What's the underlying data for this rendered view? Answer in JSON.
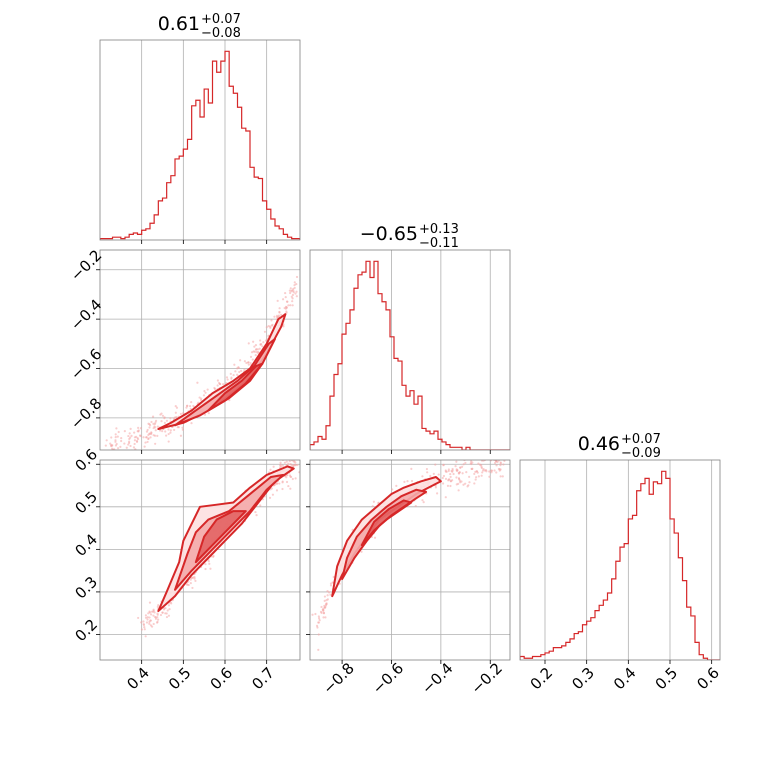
{
  "figure": {
    "colors": {
      "series": "#d62728",
      "scatter": "#f4a6a6",
      "fill_light": "#fde0e0",
      "fill_mid": "#f4aaaa",
      "grid": "#b0b0b0",
      "frame": "#808080"
    }
  },
  "chart_data": [
    {
      "type": "histogram",
      "panel": "p00",
      "title_value": "0.61",
      "title_plus": "+0.07",
      "title_minus": "−0.08",
      "xlim": [
        0.3,
        0.78
      ],
      "bin_edges_start": 0.3,
      "bin_width": 0.01,
      "counts": [
        1,
        1,
        1,
        2,
        2,
        1,
        2,
        4,
        5,
        4,
        7,
        8,
        12,
        18,
        28,
        30,
        41,
        46,
        58,
        60,
        65,
        72,
        96,
        100,
        88,
        108,
        98,
        128,
        120,
        128,
        135,
        110,
        105,
        95,
        80,
        78,
        52,
        45,
        44,
        28,
        22,
        15,
        10,
        8,
        4,
        2,
        1,
        1
      ],
      "xticks": [
        0.4,
        0.5,
        0.6,
        0.7
      ],
      "grid": true
    },
    {
      "type": "histogram",
      "panel": "p11",
      "title_value": "−0.65",
      "title_plus": "+0.13",
      "title_minus": "−0.11",
      "xlim": [
        -0.93,
        -0.12
      ],
      "bin_edges_start": -0.93,
      "bin_width": 0.0162,
      "counts": [
        2,
        3,
        5,
        4,
        9,
        20,
        28,
        32,
        43,
        47,
        52,
        60,
        65,
        66,
        70,
        64,
        70,
        58,
        55,
        52,
        42,
        34,
        33,
        24,
        20,
        22,
        17,
        20,
        8,
        7,
        6,
        7,
        4,
        3,
        2,
        1,
        1,
        1,
        0,
        1,
        0,
        0,
        0,
        0,
        0,
        0,
        0,
        0,
        0,
        0
      ],
      "xticks": [
        -0.8,
        -0.6,
        -0.4,
        -0.2
      ],
      "grid": true
    },
    {
      "type": "histogram",
      "panel": "p22",
      "title_value": "0.46",
      "title_plus": "+0.07",
      "title_minus": "−0.09",
      "xlim": [
        0.14,
        0.62
      ],
      "bin_edges_start": 0.14,
      "bin_width": 0.01,
      "counts": [
        2,
        1,
        1,
        2,
        2,
        3,
        4,
        5,
        7,
        7,
        8,
        10,
        12,
        15,
        16,
        20,
        22,
        24,
        28,
        31,
        34,
        38,
        46,
        56,
        64,
        66,
        80,
        82,
        96,
        100,
        103,
        94,
        101,
        100,
        107,
        103,
        80,
        72,
        58,
        45,
        30,
        25,
        10,
        3,
        1,
        0,
        0,
        0
      ],
      "xticks": [
        0.2,
        0.3,
        0.4,
        0.5,
        0.6
      ],
      "grid": true
    },
    {
      "type": "scatter",
      "panel": "p10",
      "subtype": "2d-density-contour",
      "xlim": [
        0.3,
        0.78
      ],
      "ylim": [
        -0.93,
        -0.12
      ],
      "yticks": [
        -0.8,
        -0.6,
        -0.4,
        -0.2
      ],
      "grid": true,
      "ridge": [
        [
          0.32,
          -0.92
        ],
        [
          0.4,
          -0.87
        ],
        [
          0.47,
          -0.82
        ],
        [
          0.53,
          -0.77
        ],
        [
          0.58,
          -0.71
        ],
        [
          0.62,
          -0.65
        ],
        [
          0.66,
          -0.58
        ],
        [
          0.69,
          -0.51
        ],
        [
          0.72,
          -0.43
        ],
        [
          0.74,
          -0.37
        ],
        [
          0.76,
          -0.31
        ],
        [
          0.775,
          -0.25
        ]
      ],
      "contours": [
        {
          "level": "outer",
          "points": [
            [
              0.44,
              -0.845
            ],
            [
              0.5,
              -0.82
            ],
            [
              0.56,
              -0.77
            ],
            [
              0.61,
              -0.71
            ],
            [
              0.66,
              -0.64
            ],
            [
              0.7,
              -0.54
            ],
            [
              0.735,
              -0.43
            ],
            [
              0.745,
              -0.38
            ],
            [
              0.728,
              -0.4
            ],
            [
              0.7,
              -0.5
            ],
            [
              0.66,
              -0.6
            ],
            [
              0.62,
              -0.65
            ],
            [
              0.57,
              -0.7
            ],
            [
              0.52,
              -0.77
            ],
            [
              0.47,
              -0.82
            ]
          ]
        },
        {
          "level": "mid",
          "points": [
            [
              0.48,
              -0.83
            ],
            [
              0.54,
              -0.79
            ],
            [
              0.6,
              -0.73
            ],
            [
              0.65,
              -0.66
            ],
            [
              0.69,
              -0.58
            ],
            [
              0.72,
              -0.48
            ],
            [
              0.705,
              -0.5
            ],
            [
              0.67,
              -0.59
            ],
            [
              0.63,
              -0.65
            ],
            [
              0.58,
              -0.71
            ],
            [
              0.53,
              -0.77
            ]
          ]
        },
        {
          "level": "inner",
          "points": [
            [
              0.56,
              -0.77
            ],
            [
              0.61,
              -0.72
            ],
            [
              0.66,
              -0.65
            ],
            [
              0.69,
              -0.58
            ],
            [
              0.675,
              -0.59
            ],
            [
              0.64,
              -0.65
            ],
            [
              0.6,
              -0.7
            ]
          ]
        }
      ]
    },
    {
      "type": "scatter",
      "panel": "p20",
      "subtype": "2d-density-contour",
      "xlim": [
        0.3,
        0.78
      ],
      "ylim": [
        0.14,
        0.61
      ],
      "xticks": [
        0.4,
        0.5,
        0.6,
        0.7
      ],
      "yticks": [
        0.2,
        0.3,
        0.4,
        0.5,
        0.6
      ],
      "grid": true,
      "ridge": [
        [
          0.4,
          0.22
        ],
        [
          0.45,
          0.26
        ],
        [
          0.5,
          0.32
        ],
        [
          0.54,
          0.37
        ],
        [
          0.58,
          0.42
        ],
        [
          0.62,
          0.47
        ],
        [
          0.66,
          0.51
        ],
        [
          0.7,
          0.55
        ],
        [
          0.74,
          0.58
        ],
        [
          0.77,
          0.6
        ]
      ],
      "contours": [
        {
          "level": "outer",
          "points": [
            [
              0.44,
              0.255
            ],
            [
              0.48,
              0.29
            ],
            [
              0.52,
              0.34
            ],
            [
              0.56,
              0.38
            ],
            [
              0.6,
              0.42
            ],
            [
              0.64,
              0.46
            ],
            [
              0.68,
              0.51
            ],
            [
              0.72,
              0.56
            ],
            [
              0.765,
              0.59
            ],
            [
              0.75,
              0.595
            ],
            [
              0.7,
              0.575
            ],
            [
              0.66,
              0.545
            ],
            [
              0.62,
              0.51
            ],
            [
              0.58,
              0.505
            ],
            [
              0.54,
              0.5
            ],
            [
              0.52,
              0.46
            ],
            [
              0.5,
              0.42
            ],
            [
              0.49,
              0.37
            ],
            [
              0.46,
              0.3
            ]
          ]
        },
        {
          "level": "mid",
          "points": [
            [
              0.48,
              0.305
            ],
            [
              0.52,
              0.35
            ],
            [
              0.57,
              0.4
            ],
            [
              0.62,
              0.45
            ],
            [
              0.66,
              0.49
            ],
            [
              0.7,
              0.54
            ],
            [
              0.74,
              0.575
            ],
            [
              0.71,
              0.57
            ],
            [
              0.66,
              0.53
            ],
            [
              0.61,
              0.49
            ],
            [
              0.56,
              0.47
            ],
            [
              0.53,
              0.44
            ],
            [
              0.51,
              0.39
            ]
          ]
        },
        {
          "level": "inner",
          "points": [
            [
              0.53,
              0.37
            ],
            [
              0.57,
              0.41
            ],
            [
              0.61,
              0.45
            ],
            [
              0.65,
              0.49
            ],
            [
              0.62,
              0.49
            ],
            [
              0.58,
              0.47
            ],
            [
              0.55,
              0.43
            ]
          ]
        }
      ]
    },
    {
      "type": "scatter",
      "panel": "p21",
      "subtype": "2d-density-contour",
      "xlim": [
        -0.93,
        -0.12
      ],
      "ylim": [
        0.14,
        0.61
      ],
      "xticks": [
        -0.8,
        -0.6,
        -0.4,
        -0.2
      ],
      "grid": true,
      "ridge": [
        [
          -0.9,
          0.22
        ],
        [
          -0.85,
          0.3
        ],
        [
          -0.8,
          0.36
        ],
        [
          -0.75,
          0.41
        ],
        [
          -0.7,
          0.45
        ],
        [
          -0.65,
          0.48
        ],
        [
          -0.6,
          0.505
        ],
        [
          -0.55,
          0.525
        ],
        [
          -0.5,
          0.54
        ],
        [
          -0.45,
          0.555
        ],
        [
          -0.4,
          0.565
        ],
        [
          -0.3,
          0.585
        ],
        [
          -0.2,
          0.6
        ],
        [
          -0.13,
          0.61
        ]
      ],
      "contours": [
        {
          "level": "outer",
          "points": [
            [
              -0.84,
              0.29
            ],
            [
              -0.8,
              0.34
            ],
            [
              -0.75,
              0.39
            ],
            [
              -0.7,
              0.43
            ],
            [
              -0.65,
              0.47
            ],
            [
              -0.6,
              0.49
            ],
            [
              -0.55,
              0.51
            ],
            [
              -0.5,
              0.53
            ],
            [
              -0.45,
              0.545
            ],
            [
              -0.4,
              0.56
            ],
            [
              -0.42,
              0.57
            ],
            [
              -0.48,
              0.56
            ],
            [
              -0.55,
              0.545
            ],
            [
              -0.6,
              0.53
            ],
            [
              -0.66,
              0.5
            ],
            [
              -0.72,
              0.47
            ],
            [
              -0.78,
              0.42
            ],
            [
              -0.82,
              0.36
            ]
          ]
        },
        {
          "level": "mid",
          "points": [
            [
              -0.8,
              0.33
            ],
            [
              -0.75,
              0.38
            ],
            [
              -0.7,
              0.42
            ],
            [
              -0.65,
              0.455
            ],
            [
              -0.6,
              0.48
            ],
            [
              -0.55,
              0.5
            ],
            [
              -0.5,
              0.52
            ],
            [
              -0.46,
              0.535
            ],
            [
              -0.5,
              0.54
            ],
            [
              -0.56,
              0.525
            ],
            [
              -0.62,
              0.5
            ],
            [
              -0.68,
              0.47
            ],
            [
              -0.74,
              0.43
            ],
            [
              -0.78,
              0.38
            ]
          ]
        },
        {
          "level": "inner",
          "points": [
            [
              -0.72,
              0.41
            ],
            [
              -0.67,
              0.445
            ],
            [
              -0.62,
              0.47
            ],
            [
              -0.57,
              0.49
            ],
            [
              -0.52,
              0.51
            ],
            [
              -0.55,
              0.515
            ],
            [
              -0.61,
              0.495
            ],
            [
              -0.67,
              0.465
            ]
          ]
        }
      ]
    }
  ]
}
